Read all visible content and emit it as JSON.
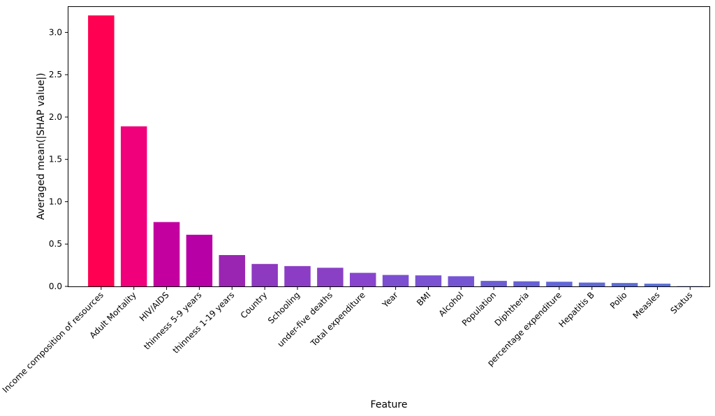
{
  "chart_data": {
    "type": "bar",
    "title": "",
    "xlabel": "Feature",
    "ylabel": "Averaged mean(|SHAP value|)",
    "ylim": [
      0,
      3.3
    ],
    "yticks": [
      0.0,
      0.5,
      1.0,
      1.5,
      2.0,
      2.5,
      3.0
    ],
    "ytick_labels": [
      "0.0",
      "0.5",
      "1.0",
      "1.5",
      "2.0",
      "2.5",
      "3.0"
    ],
    "grid": false,
    "categories": [
      "Income composition of resources",
      "Adult Mortality",
      "HIV/AIDS",
      "thinness 5-9 years",
      "thinness  1-19 years",
      "Country",
      "Schooling",
      "under-five deaths",
      "Total expenditure",
      "Year",
      "BMI",
      "Alcohol",
      "Population",
      "Diphtheria",
      "percentage expenditure",
      "Hepatitis B",
      "Polio",
      "Measles",
      "Status"
    ],
    "values": [
      3.2,
      1.89,
      0.76,
      0.61,
      0.37,
      0.265,
      0.24,
      0.22,
      0.16,
      0.135,
      0.13,
      0.12,
      0.065,
      0.06,
      0.055,
      0.045,
      0.04,
      0.032,
      0.003
    ],
    "colors": [
      "#ff0052",
      "#f0007a",
      "#c3009f",
      "#b700a5",
      "#9a25b2",
      "#8d39c0",
      "#8b3ec5",
      "#8a40c5",
      "#8844cc",
      "#7c4fd0",
      "#7a52d2",
      "#7655d3",
      "#6c5dd4",
      "#6761d6",
      "#6266d7",
      "#5e68d8",
      "#5a6bd8",
      "#586fd9",
      "#5570da"
    ]
  }
}
